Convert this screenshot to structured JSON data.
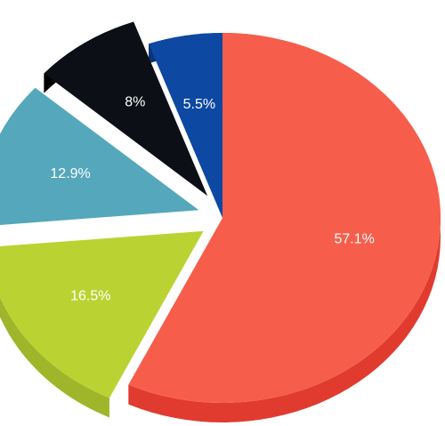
{
  "chart_data": {
    "type": "pie",
    "title": "",
    "legend": "none",
    "slices": [
      {
        "label": "57.1%",
        "value": 57.1,
        "color": "#f65e4b",
        "side_color": "#e03b2e"
      },
      {
        "label": "16.5%",
        "value": 16.5,
        "color": "#bbd332",
        "side_color": "#9fb52a"
      },
      {
        "label": "12.9%",
        "value": 12.9,
        "color": "#55a7bc",
        "side_color": "#3e8396"
      },
      {
        "label": "8%",
        "value": 8,
        "color": "#0c0f15",
        "side_color": "#000000"
      },
      {
        "label": "5.5%",
        "value": 5.5,
        "color": "#0d48a2",
        "side_color": "#0a3478"
      }
    ]
  }
}
